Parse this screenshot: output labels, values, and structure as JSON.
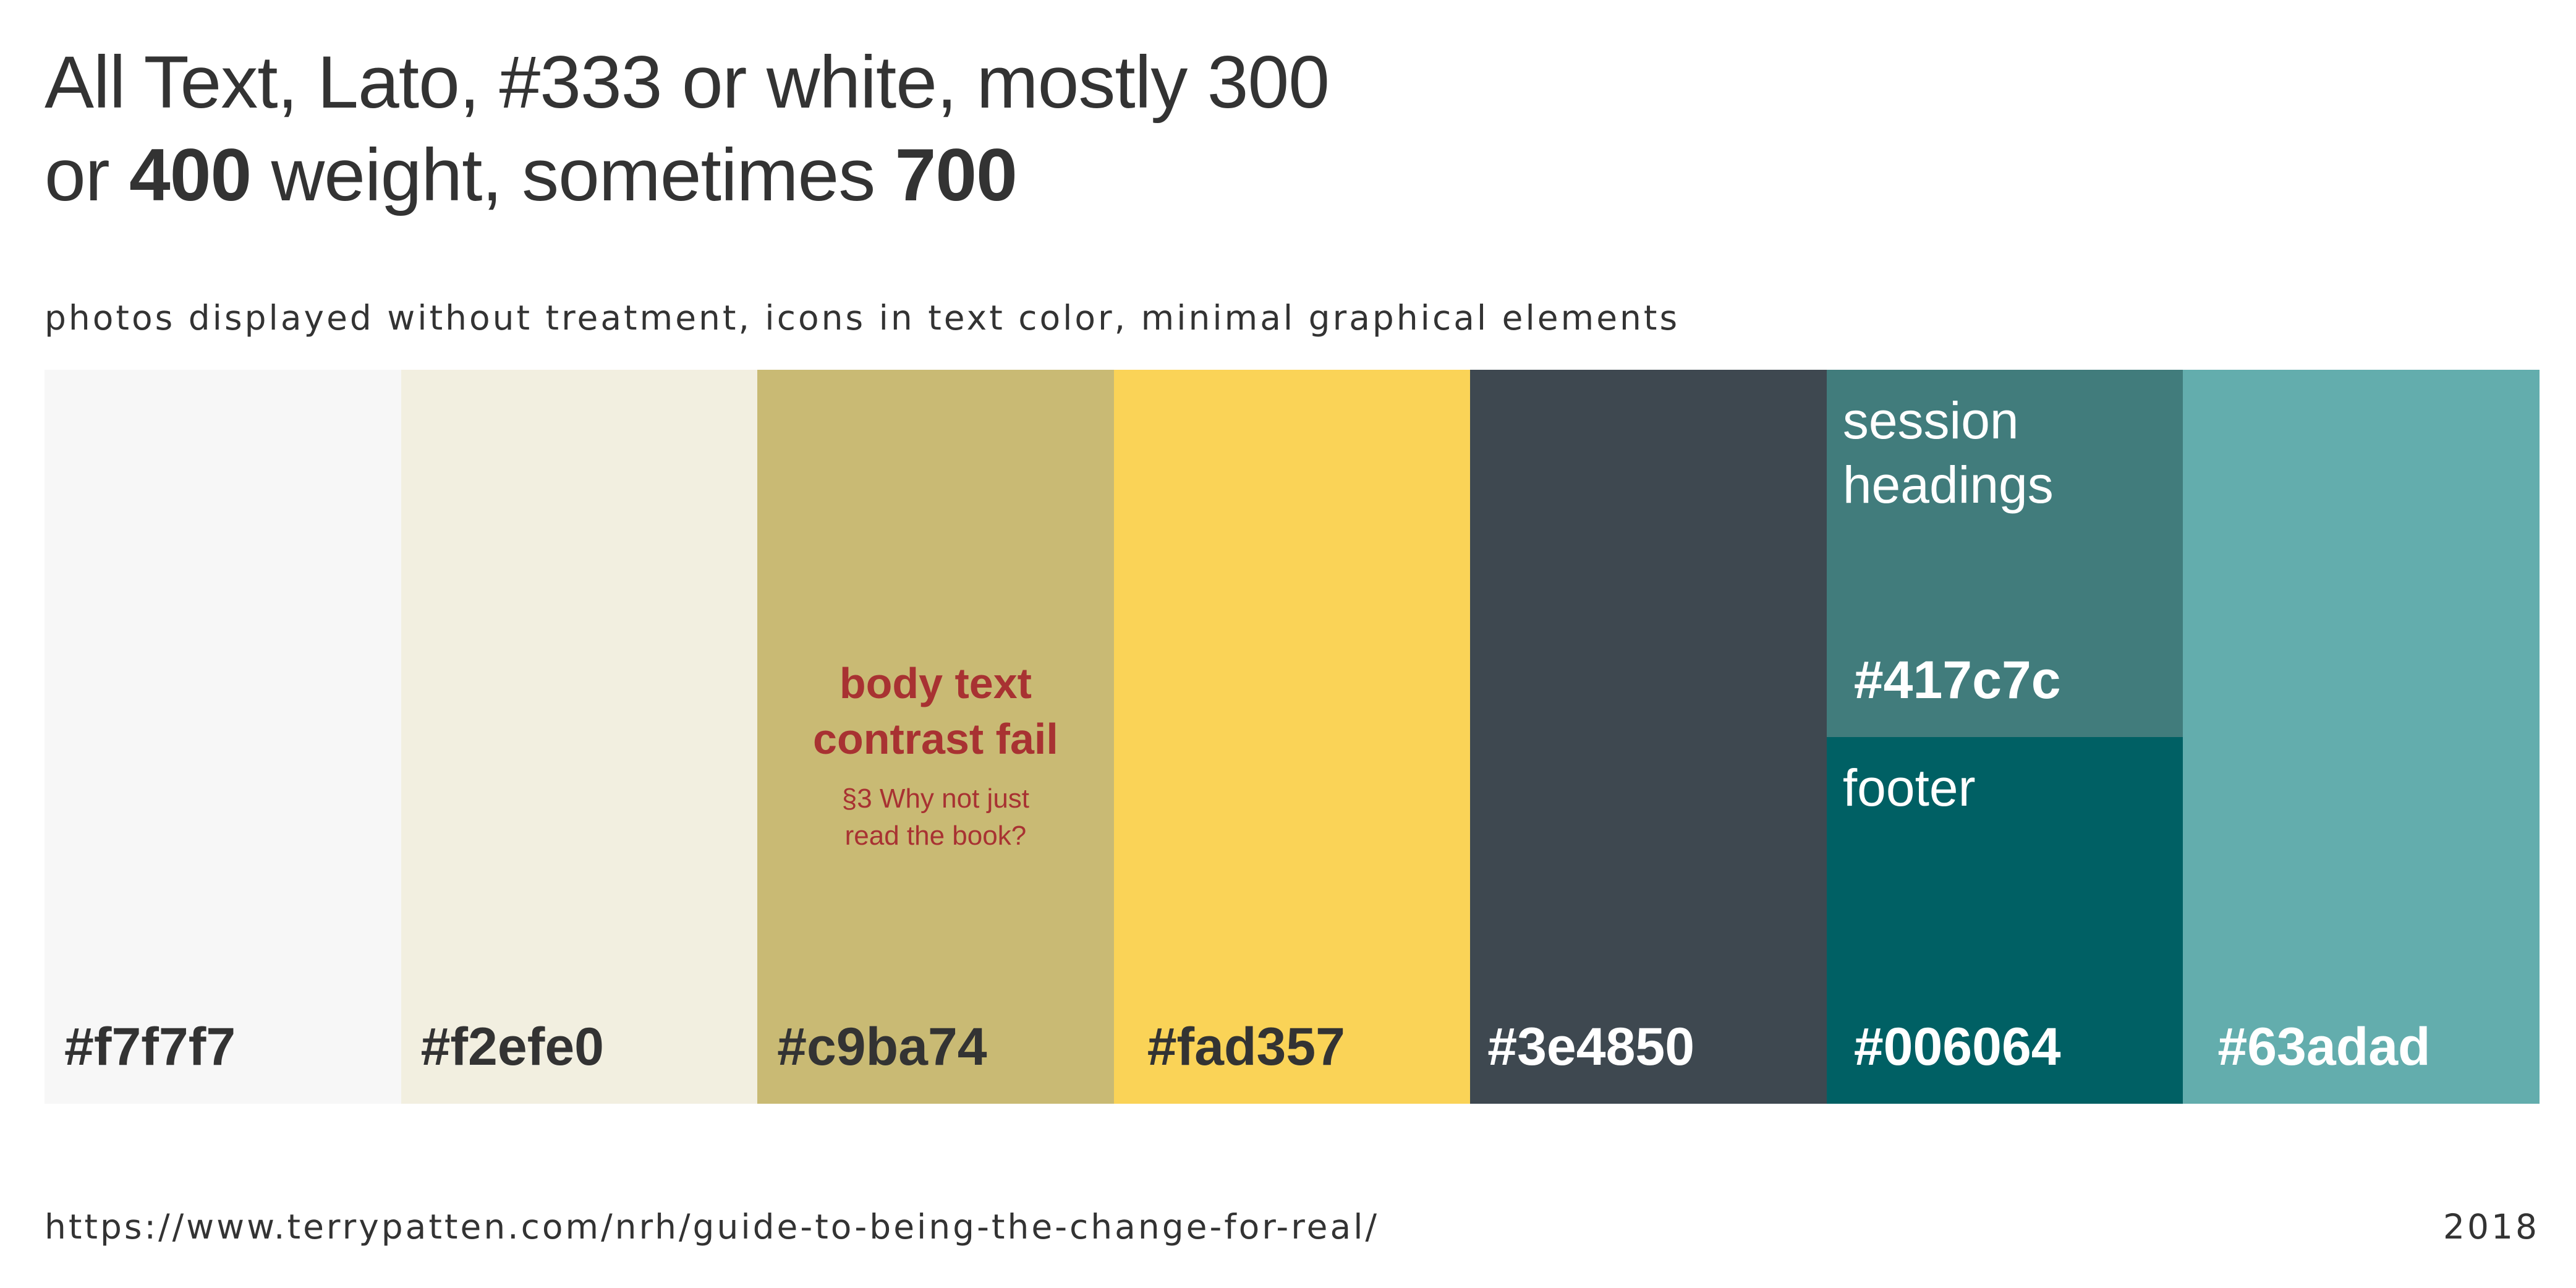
{
  "headline": {
    "line1": "All Text, Lato, #333 or white, mostly 300",
    "line2_prefix": "or ",
    "line2_bold1": "400",
    "line2_middle": " weight, sometimes ",
    "line2_bold2": "700"
  },
  "tagline": "photos displayed without treatment, icons in text color, minimal graphical elements",
  "swatches": [
    {
      "code": "#f7f7f7",
      "color": "#f7f7f7"
    },
    {
      "code": "#f2efe0",
      "color": "#f2efe0"
    },
    {
      "code": "#c9ba74",
      "color": "#c9ba74",
      "note_title": "body text\ncontrast fail",
      "note_sub": "§3 Why not just\nread the book?",
      "note_color": "#a83232"
    },
    {
      "code": "#fad357",
      "color": "#fad357"
    },
    {
      "code": "#3e4850",
      "color": "#3e4850"
    },
    {
      "top": {
        "code": "#417c7c",
        "color": "#417c7c",
        "label": "session\nheadings"
      },
      "bottom": {
        "code": "#006064",
        "color": "#006064",
        "label": "footer"
      }
    },
    {
      "code": "#63adad",
      "color": "#63adad"
    }
  ],
  "colors": {
    "text": "#333333",
    "white": "#ffffff"
  },
  "footer": {
    "url": "https://www.terrypatten.com/nrh/guide-to-being-the-change-for-real/",
    "year": "2018"
  }
}
